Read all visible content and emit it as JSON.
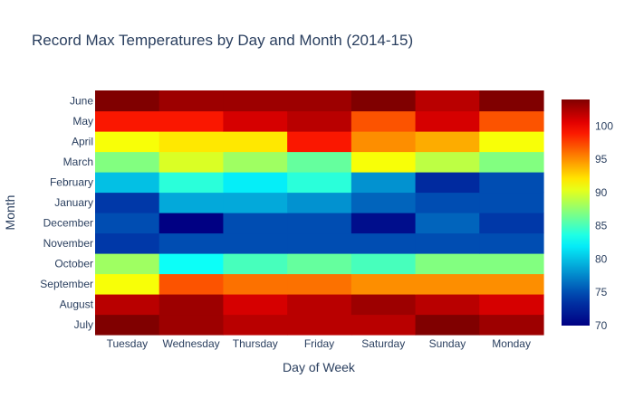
{
  "chart_data": {
    "type": "heatmap",
    "title": "Record Max Temperatures by Day and Month (2014-15)",
    "xlabel": "Day of Week",
    "ylabel": "Month",
    "x": [
      "Tuesday",
      "Wednesday",
      "Thursday",
      "Friday",
      "Saturday",
      "Sunday",
      "Monday"
    ],
    "y": [
      "July",
      "August",
      "September",
      "October",
      "November",
      "December",
      "January",
      "February",
      "March",
      "April",
      "May",
      "June"
    ],
    "z": [
      [
        104,
        103,
        102,
        102,
        102,
        104,
        103
      ],
      [
        102,
        103,
        101,
        102,
        103,
        102,
        101
      ],
      [
        91,
        97,
        96,
        96,
        95,
        95,
        95
      ],
      [
        88,
        83,
        85,
        86,
        85,
        87,
        87
      ],
      [
        74,
        75,
        75,
        75,
        75,
        75,
        75
      ],
      [
        75,
        70,
        75,
        75,
        71,
        76,
        74
      ],
      [
        74,
        79,
        79,
        78,
        76,
        75,
        75
      ],
      [
        80,
        84,
        82,
        84,
        78,
        73,
        75
      ],
      [
        87,
        90,
        88,
        86,
        91,
        89,
        87
      ],
      [
        91,
        92,
        92,
        99,
        95,
        94,
        91
      ],
      [
        99,
        99,
        101,
        102,
        97,
        101,
        97
      ],
      [
        104,
        103,
        103,
        103,
        104,
        102,
        104
      ]
    ],
    "colorscale": "Jet",
    "zrange": [
      70,
      104
    ],
    "colorbar_ticks": [
      70,
      75,
      80,
      85,
      90,
      95,
      100
    ],
    "grid": false
  }
}
